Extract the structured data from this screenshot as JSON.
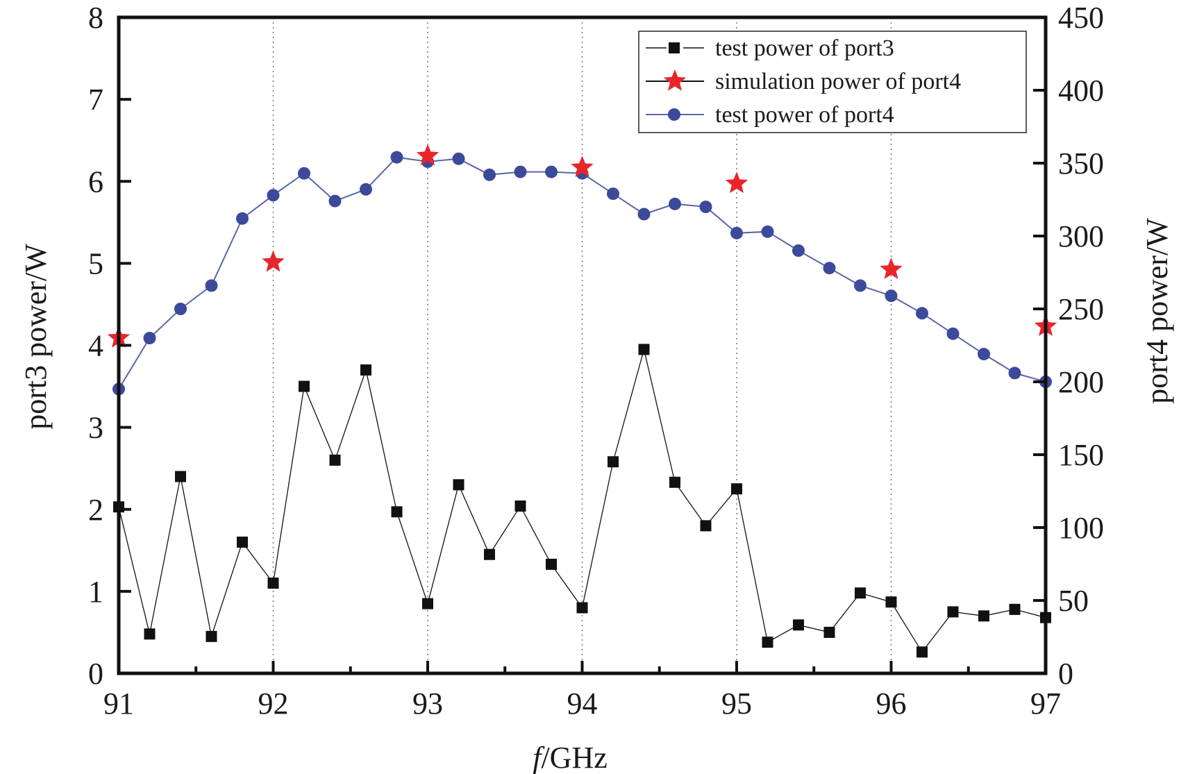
{
  "chart_data": {
    "type": "line",
    "xlabel_italic": "f",
    "xlabel_rest": "/GHz",
    "ylabel_left": "port3 power/W",
    "ylabel_right": "port4 power/W",
    "xlim": [
      91,
      97
    ],
    "ylim_left": [
      0,
      8
    ],
    "ylim_right": [
      0,
      450
    ],
    "x_ticks": [
      91,
      92,
      93,
      94,
      95,
      96,
      97
    ],
    "y_ticks_left": [
      0,
      1,
      2,
      3,
      4,
      5,
      6,
      7,
      8
    ],
    "y_ticks_right": [
      0,
      50,
      100,
      150,
      200,
      250,
      300,
      350,
      400,
      450
    ],
    "grid": "vertical dotted at major x ticks",
    "legend_position": "top-right",
    "colors": {
      "port3": "#111111",
      "port4_sim": "#e8262a",
      "port4_test": "#3b4a9a",
      "port4_line": "#5a64a8"
    },
    "series": [
      {
        "name": "test power of port3",
        "axis": "left",
        "marker": "square",
        "x": [
          91.0,
          91.2,
          91.4,
          91.6,
          91.8,
          92.0,
          92.2,
          92.4,
          92.6,
          92.8,
          93.0,
          93.2,
          93.4,
          93.6,
          93.8,
          94.0,
          94.2,
          94.4,
          94.6,
          94.8,
          95.0,
          95.2,
          95.4,
          95.6,
          95.8,
          96.0,
          96.2,
          96.4,
          96.6,
          96.8,
          97.0
        ],
        "y": [
          2.03,
          0.48,
          2.4,
          0.45,
          1.6,
          1.1,
          3.5,
          2.6,
          3.7,
          1.97,
          0.85,
          2.3,
          1.45,
          2.04,
          1.33,
          0.8,
          2.58,
          3.95,
          2.33,
          1.8,
          2.25,
          0.38,
          0.59,
          0.5,
          0.98,
          0.87,
          0.26,
          0.75,
          0.7,
          0.78,
          0.68
        ]
      },
      {
        "name": "simulation power of port4",
        "axis": "right",
        "marker": "star",
        "x": [
          91.0,
          92.0,
          93.0,
          94.0,
          95.0,
          96.0,
          97.0
        ],
        "y": [
          230,
          282,
          355,
          347,
          336,
          277,
          238
        ]
      },
      {
        "name": "test power of port4",
        "axis": "right",
        "marker": "circle",
        "x": [
          91.0,
          91.2,
          91.4,
          91.6,
          91.8,
          92.0,
          92.2,
          92.4,
          92.6,
          92.8,
          93.0,
          93.2,
          93.4,
          93.6,
          93.8,
          94.0,
          94.2,
          94.4,
          94.6,
          94.8,
          95.0,
          95.2,
          95.4,
          95.6,
          95.8,
          96.0,
          96.2,
          96.4,
          96.6,
          96.8,
          97.0
        ],
        "y": [
          195,
          230,
          250,
          266,
          312,
          328,
          343,
          324,
          332,
          354,
          351,
          353,
          342,
          344,
          344,
          343,
          329,
          315,
          322,
          320,
          302,
          303,
          290,
          278,
          266,
          259,
          247,
          233,
          219,
          206,
          200
        ]
      }
    ]
  }
}
